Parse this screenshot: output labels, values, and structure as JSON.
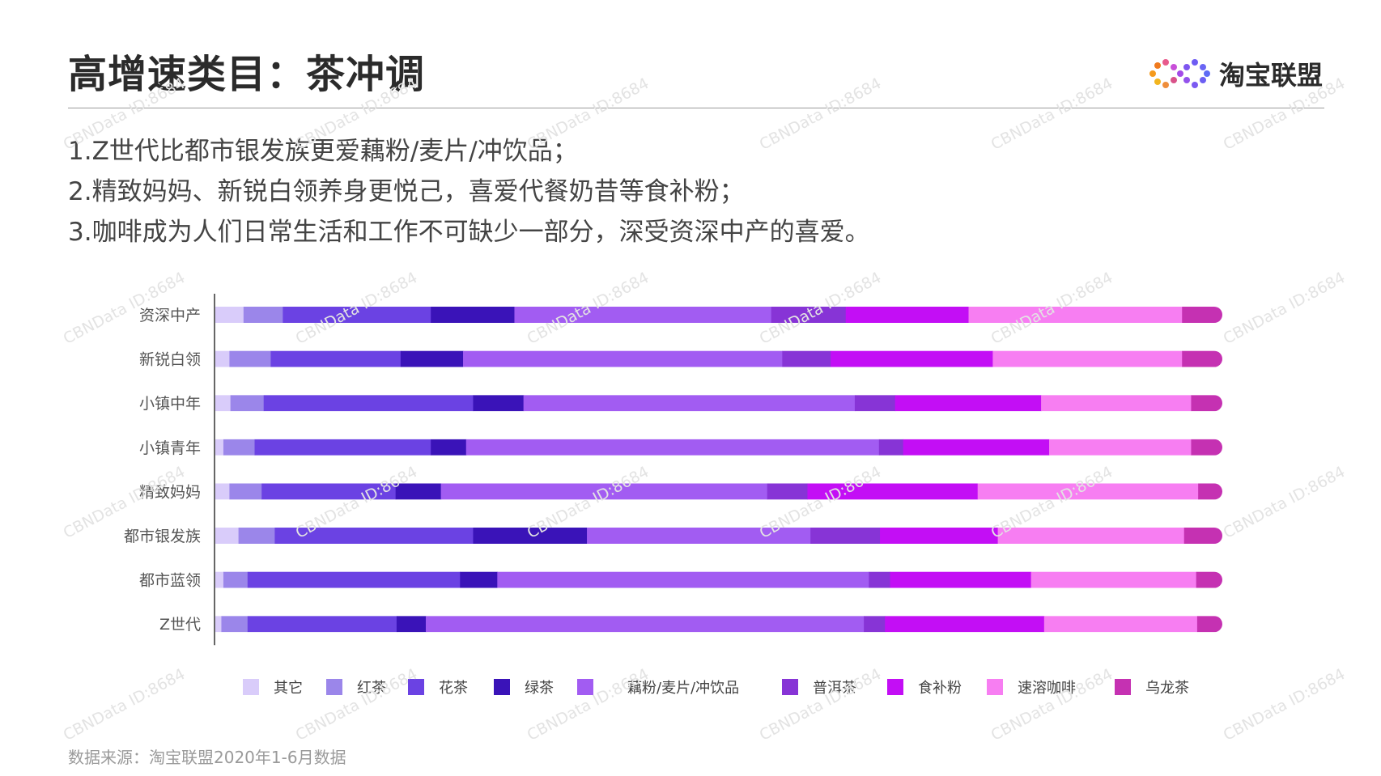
{
  "header": {
    "title": "高增速类目：茶冲调",
    "brand": "淘宝联盟"
  },
  "bullets": [
    "1.Z世代比都市银发族更爱藕粉/麦片/冲饮品；",
    "2.精致妈妈、新锐白领养身更悦己，喜爱代餐奶昔等食补粉；",
    "3.咖啡成为人们日常生活和工作不可缺少一部分，深受资深中产的喜爱。"
  ],
  "source": "数据来源：淘宝联盟2020年1-6月数据",
  "watermark": "CBNData ID:8684",
  "chart_data": {
    "type": "bar",
    "orientation": "horizontal",
    "stacked": true,
    "normalized": true,
    "xlim": [
      0,
      100
    ],
    "categories": [
      "资深中产",
      "新锐白领",
      "小镇中年",
      "小镇青年",
      "精致妈妈",
      "都市银发族",
      "都市蓝领",
      "Z世代"
    ],
    "series": [
      {
        "name": "其它",
        "color": "#D9CCFA",
        "values": [
          2.8,
          1.4,
          1.5,
          0.8,
          1.4,
          2.3,
          0.8,
          0.6
        ]
      },
      {
        "name": "红茶",
        "color": "#9B86EA",
        "values": [
          3.9,
          4.1,
          3.3,
          3.1,
          3.2,
          3.6,
          2.4,
          2.6
        ]
      },
      {
        "name": "花茶",
        "color": "#6B42E3",
        "values": [
          14.7,
          12.9,
          20.8,
          17.5,
          13.3,
          19.7,
          21.1,
          14.8
        ]
      },
      {
        "name": "绿茶",
        "color": "#3A13B8",
        "values": [
          8.3,
          6.2,
          5.0,
          3.5,
          4.5,
          11.3,
          3.7,
          2.9
        ]
      },
      {
        "name": "藕粉/麦片/冲饮品",
        "color": "#A25CF2",
        "values": [
          25.5,
          31.7,
          32.9,
          41.0,
          32.4,
          22.2,
          36.9,
          43.5
        ]
      },
      {
        "name": "普洱茶",
        "color": "#8734D6",
        "values": [
          7.4,
          4.8,
          4.0,
          2.4,
          4.0,
          6.9,
          2.1,
          2.1
        ]
      },
      {
        "name": "食补粉",
        "color": "#C30EF5",
        "values": [
          12.2,
          16.1,
          14.5,
          14.5,
          16.9,
          11.7,
          14.0,
          15.8
        ]
      },
      {
        "name": "速溶咖啡",
        "color": "#F77EF2",
        "values": [
          21.2,
          18.8,
          14.9,
          14.1,
          21.9,
          18.5,
          16.4,
          15.2
        ]
      },
      {
        "name": "乌龙茶",
        "color": "#C531B2",
        "values": [
          4.0,
          4.0,
          3.1,
          3.1,
          2.4,
          3.8,
          2.6,
          2.5
        ]
      }
    ]
  }
}
